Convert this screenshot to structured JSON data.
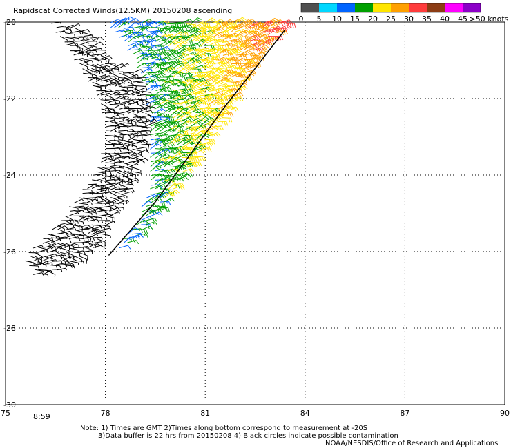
{
  "chart_data": {
    "type": "wind-barb-map",
    "title": "Rapidscat Corrected Winds(12.5KM) 20150208 ascending",
    "x_axis": {
      "ticks": [
        "75",
        "78",
        "81",
        "84",
        "87",
        "90"
      ],
      "range": [
        75,
        90
      ]
    },
    "y_axis": {
      "ticks": [
        "-20",
        "-22",
        "-24",
        "-26",
        "-28",
        "-30"
      ],
      "range": [
        -30,
        -20
      ]
    },
    "grid": true,
    "colorbar": {
      "labels": [
        "0",
        "5",
        "10",
        "15",
        "20",
        "25",
        "30",
        "35",
        "40",
        "45",
        ">50 knots"
      ],
      "bins": [
        {
          "min": 0,
          "max": 5,
          "color": "#505050"
        },
        {
          "min": 5,
          "max": 10,
          "color": "#00d7ff"
        },
        {
          "min": 10,
          "max": 15,
          "color": "#0064ff"
        },
        {
          "min": 15,
          "max": 20,
          "color": "#00a000"
        },
        {
          "min": 20,
          "max": 25,
          "color": "#ffe600"
        },
        {
          "min": 25,
          "max": 30,
          "color": "#ffa000"
        },
        {
          "min": 30,
          "max": 35,
          "color": "#ff3c3c"
        },
        {
          "min": 35,
          "max": 40,
          "color": "#8c3c14"
        },
        {
          "min": 40,
          "max": 45,
          "color": "#ff00ff"
        },
        {
          "min": 45,
          "max": 50,
          "color": "#8c00c8"
        }
      ]
    },
    "swath": {
      "black_region": {
        "polygon_lonlat": [
          [
            76.3,
            -20.0
          ],
          [
            77.4,
            -20.2
          ],
          [
            78.0,
            -21.0
          ],
          [
            79.0,
            -21.4
          ],
          [
            79.3,
            -22.5
          ],
          [
            79.0,
            -23.6
          ],
          [
            78.5,
            -24.6
          ],
          [
            78.0,
            -25.4
          ],
          [
            77.8,
            -25.8
          ],
          [
            76.8,
            -26.4
          ],
          [
            75.9,
            -26.7
          ],
          [
            75.5,
            -26.2
          ],
          [
            76.6,
            -25.2
          ],
          [
            77.6,
            -24.0
          ],
          [
            78.0,
            -23.0
          ],
          [
            77.8,
            -22.0
          ],
          [
            77.2,
            -21.2
          ]
        ],
        "speed_knots": [
          3,
          9
        ],
        "direction_deg": [
          60,
          120
        ]
      },
      "color_region": {
        "polygon_lonlat": [
          [
            78.0,
            -20.0
          ],
          [
            83.5,
            -20.0
          ],
          [
            82.8,
            -20.6
          ],
          [
            81.5,
            -22.5
          ],
          [
            80.2,
            -24.2
          ],
          [
            79.0,
            -25.6
          ],
          [
            78.1,
            -26.1
          ],
          [
            78.8,
            -25.4
          ],
          [
            79.3,
            -24.4
          ],
          [
            79.3,
            -23.0
          ],
          [
            79.2,
            -21.8
          ],
          [
            78.8,
            -20.9
          ]
        ],
        "speed_knots_by_lon": [
          [
            78.5,
            13
          ],
          [
            80.0,
            19
          ],
          [
            81.5,
            24
          ],
          [
            83.0,
            31
          ]
        ],
        "direction_deg": [
          45,
          95
        ]
      },
      "edge_line_lonlat": [
        [
          78.1,
          -26.1
        ],
        [
          79.5,
          -24.7
        ],
        [
          80.6,
          -23.4
        ],
        [
          81.6,
          -22.2
        ],
        [
          82.6,
          -21.1
        ],
        [
          83.4,
          -20.2
        ]
      ]
    },
    "bottom_time_label": "8:59"
  },
  "notes": {
    "line1": "Note: 1) Times are GMT 2)Times along bottom correspond to measurement at -20S",
    "line2": "3)Data buffer is 22 hrs from 20150208 4) Black circles indicate possible contamination",
    "line3": "NOAA/NESDIS/Office of Research and Applications"
  },
  "colors": {
    "time_label": "#800080",
    "grid": "#000000",
    "background": "#ffffff"
  }
}
